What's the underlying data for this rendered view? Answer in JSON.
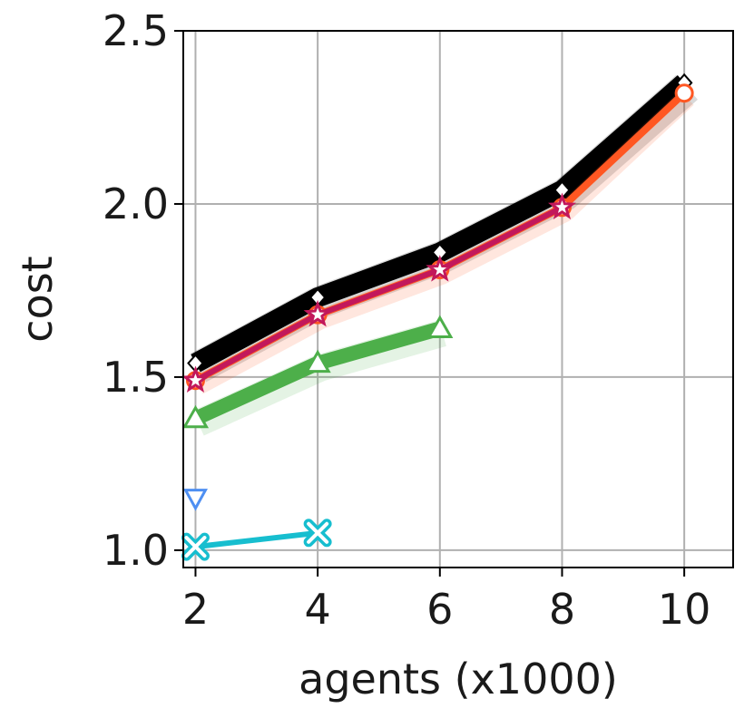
{
  "chart_data": {
    "type": "line",
    "xlabel": "agents (x1000)",
    "ylabel": "cost",
    "xlim": [
      1.8,
      10.8
    ],
    "ylim": [
      0.95,
      2.5
    ],
    "xticks": [
      2,
      4,
      6,
      8,
      10
    ],
    "yticks": [
      1.0,
      1.5,
      2.0,
      2.5
    ],
    "xtick_labels": [
      "2",
      "4",
      "6",
      "8",
      "10"
    ],
    "ytick_labels": [
      "1.0",
      "1.5",
      "2.0",
      "2.5"
    ],
    "grid": true,
    "series": [
      {
        "color": "#4e8ff2",
        "marker": "triangle-down",
        "x": [
          2
        ],
        "y": [
          1.15
        ]
      },
      {
        "color": "#17becf",
        "marker": "x",
        "x": [
          2,
          4
        ],
        "y": [
          1.01,
          1.05
        ]
      },
      {
        "color": "#4daf4a",
        "marker": "triangle-up",
        "x": [
          2,
          4,
          6
        ],
        "y": [
          1.38,
          1.54,
          1.64
        ]
      },
      {
        "color": "#000000",
        "marker": "diamond",
        "x": [
          2,
          4,
          6,
          8,
          10
        ],
        "y": [
          1.54,
          1.73,
          1.86,
          2.04,
          2.35
        ]
      },
      {
        "color": "#ff5722",
        "marker": "circle",
        "x": [
          2,
          4,
          6,
          8,
          10
        ],
        "y": [
          1.49,
          1.68,
          1.81,
          1.99,
          2.32
        ]
      },
      {
        "color": "#c2185b",
        "marker": "star",
        "x": [
          2,
          4,
          6,
          8
        ],
        "y": [
          1.49,
          1.68,
          1.81,
          1.99
        ]
      }
    ]
  }
}
